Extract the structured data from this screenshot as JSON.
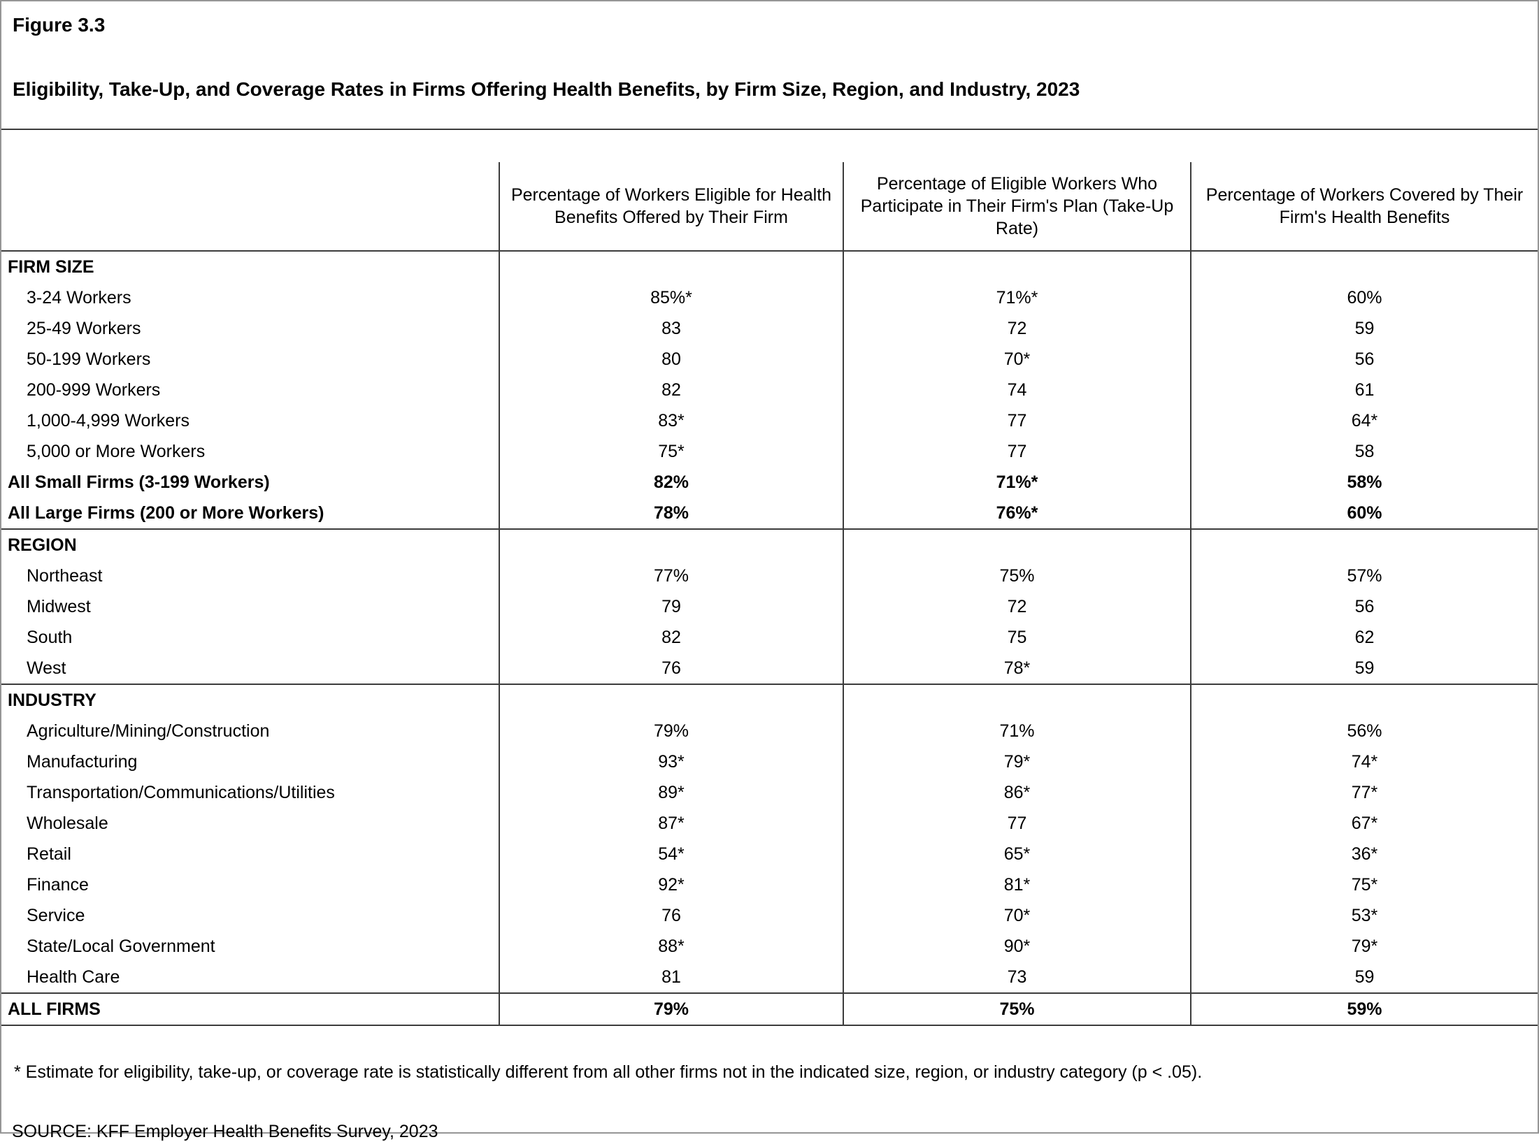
{
  "figure_label": "Figure 3.3",
  "title": "Eligibility, Take-Up, and Coverage Rates in Firms Offering Health Benefits, by Firm Size, Region, and Industry, 2023",
  "chart_data": {
    "type": "table",
    "column_headers": [
      "Percentage of Workers Eligible for Health Benefits Offered by Their Firm",
      "Percentage of Eligible Workers Who Participate in Their Firm's Plan (Take-Up Rate)",
      "Percentage of Workers Covered by Their Firm's Health Benefits"
    ],
    "sections": [
      {
        "header": "FIRM SIZE",
        "rows": [
          {
            "label": "3-24 Workers",
            "values": [
              "85%*",
              "71%*",
              "60%"
            ],
            "bold": false
          },
          {
            "label": "25-49 Workers",
            "values": [
              "83",
              "72",
              "59"
            ],
            "bold": false
          },
          {
            "label": "50-199 Workers",
            "values": [
              "80",
              "70*",
              "56"
            ],
            "bold": false
          },
          {
            "label": "200-999 Workers",
            "values": [
              "82",
              "74",
              "61"
            ],
            "bold": false
          },
          {
            "label": "1,000-4,999 Workers",
            "values": [
              "83*",
              "77",
              "64*"
            ],
            "bold": false
          },
          {
            "label": "5,000 or More Workers",
            "values": [
              "75*",
              "77",
              "58"
            ],
            "bold": false
          },
          {
            "label": "All Small Firms (3-199 Workers)",
            "values": [
              "82%",
              "71%*",
              "58%"
            ],
            "bold": true
          },
          {
            "label": "All Large Firms (200 or More Workers)",
            "values": [
              "78%",
              "76%*",
              "60%"
            ],
            "bold": true
          }
        ]
      },
      {
        "header": "REGION",
        "rows": [
          {
            "label": "Northeast",
            "values": [
              "77%",
              "75%",
              "57%"
            ],
            "bold": false
          },
          {
            "label": "Midwest",
            "values": [
              "79",
              "72",
              "56"
            ],
            "bold": false
          },
          {
            "label": "South",
            "values": [
              "82",
              "75",
              "62"
            ],
            "bold": false
          },
          {
            "label": "West",
            "values": [
              "76",
              "78*",
              "59"
            ],
            "bold": false
          }
        ]
      },
      {
        "header": "INDUSTRY",
        "rows": [
          {
            "label": "Agriculture/Mining/Construction",
            "values": [
              "79%",
              "71%",
              "56%"
            ],
            "bold": false
          },
          {
            "label": "Manufacturing",
            "values": [
              "93*",
              "79*",
              "74*"
            ],
            "bold": false
          },
          {
            "label": "Transportation/Communications/Utilities",
            "values": [
              "89*",
              "86*",
              "77*"
            ],
            "bold": false
          },
          {
            "label": "Wholesale",
            "values": [
              "87*",
              "77",
              "67*"
            ],
            "bold": false
          },
          {
            "label": "Retail",
            "values": [
              "54*",
              "65*",
              "36*"
            ],
            "bold": false
          },
          {
            "label": "Finance",
            "values": [
              "92*",
              "81*",
              "75*"
            ],
            "bold": false
          },
          {
            "label": "Service",
            "values": [
              "76",
              "70*",
              "53*"
            ],
            "bold": false
          },
          {
            "label": "State/Local Government",
            "values": [
              "88*",
              "90*",
              "79*"
            ],
            "bold": false
          },
          {
            "label": "Health Care",
            "values": [
              "81",
              "73",
              "59"
            ],
            "bold": false
          }
        ]
      }
    ],
    "total_row": {
      "label": "ALL FIRMS",
      "values": [
        "79%",
        "75%",
        "59%"
      ]
    }
  },
  "footnote": "* Estimate for eligibility, take-up, or coverage rate is statistically different from all other firms not in the indicated size, region, or industry category (p < .05).",
  "source": "SOURCE: KFF Employer Health Benefits Survey, 2023"
}
